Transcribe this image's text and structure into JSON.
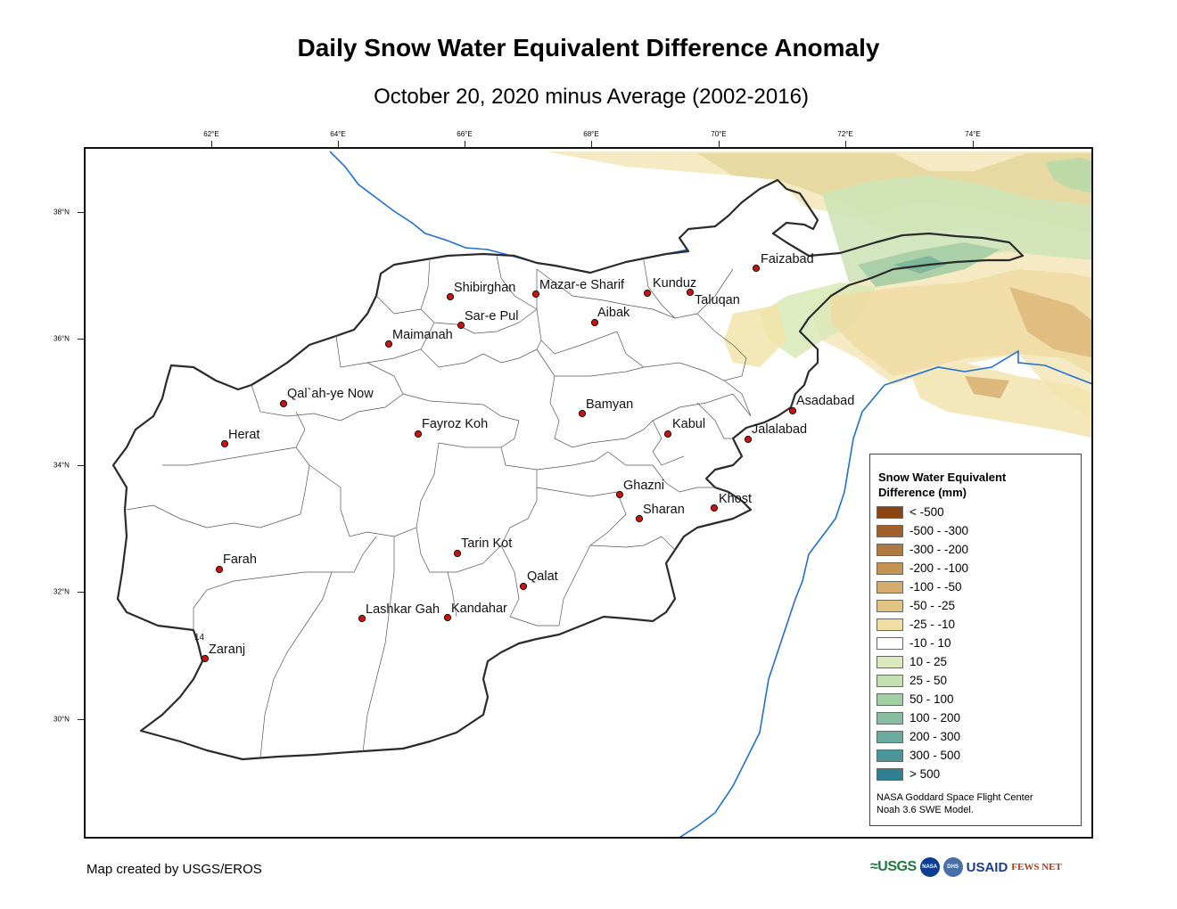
{
  "title": "Daily Snow Water Equivalent Difference Anomaly",
  "subtitle": "October 20, 2020 minus Average (2002-2016)",
  "longitude_ticks": [
    "62°E",
    "64°E",
    "66°E",
    "68°E",
    "70°E",
    "72°E",
    "74°E"
  ],
  "latitude_ticks": [
    "38°N",
    "36°N",
    "34°N",
    "32°N",
    "30°N"
  ],
  "cities": [
    {
      "name": "Faizabad"
    },
    {
      "name": "Shibirghan"
    },
    {
      "name": "Mazar-e Sharif"
    },
    {
      "name": "Kunduz"
    },
    {
      "name": "Taluqan"
    },
    {
      "name": "Sar-e Pul"
    },
    {
      "name": "Aibak"
    },
    {
      "name": "Maimanah"
    },
    {
      "name": "Qal`ah-ye Now"
    },
    {
      "name": "Bamyan"
    },
    {
      "name": "Asadabad"
    },
    {
      "name": "Kabul"
    },
    {
      "name": "Fayroz Koh"
    },
    {
      "name": "Jalalabad"
    },
    {
      "name": "Herat"
    },
    {
      "name": "Ghazni"
    },
    {
      "name": "Khost"
    },
    {
      "name": "Sharan"
    },
    {
      "name": "Tarin Kot"
    },
    {
      "name": "Farah"
    },
    {
      "name": "Qalat"
    },
    {
      "name": "Lashkar Gah"
    },
    {
      "name": "Kandahar"
    },
    {
      "name": "Zaranj"
    }
  ],
  "stray_map_label": "14",
  "legend": {
    "title_line1": "Snow Water Equivalent",
    "title_line2": "Difference (mm)",
    "classes": [
      {
        "label": "< -500",
        "color": "#8b4513"
      },
      {
        "label": "-500 - -300",
        "color": "#a0602a"
      },
      {
        "label": "-300 - -200",
        "color": "#b07a45"
      },
      {
        "label": "-200 - -100",
        "color": "#c49356"
      },
      {
        "label": "-100 - -50",
        "color": "#d4ac6e"
      },
      {
        "label": "-50 - -25",
        "color": "#e2c285"
      },
      {
        "label": "-25 - -10",
        "color": "#f0dea2"
      },
      {
        "label": "-10 - 10",
        "color": "#ffffff"
      },
      {
        "label": "10 - 25",
        "color": "#dcebbb"
      },
      {
        "label": "25 - 50",
        "color": "#c2e0b0"
      },
      {
        "label": "50 - 100",
        "color": "#a3cfa7"
      },
      {
        "label": "100 - 200",
        "color": "#87bea1"
      },
      {
        "label": "200 - 300",
        "color": "#6aab9e"
      },
      {
        "label": "300 - 500",
        "color": "#4a9699"
      },
      {
        "label": "> 500",
        "color": "#2f7f91"
      }
    ],
    "credit_line1": "NASA Goddard Space Flight Center",
    "credit_line2": "Noah 3.6 SWE Model."
  },
  "footer_credit": "Map created by USGS/EROS",
  "logos": {
    "usgs": "≈USGS",
    "nasa": "NASA",
    "dhs": "DHS",
    "usaid": "USAID",
    "fews": "FEWS NET"
  },
  "colors": {
    "river_blue": "#1f6fd6",
    "city_dot": "#cc1111",
    "border": "#2a2a2a"
  }
}
